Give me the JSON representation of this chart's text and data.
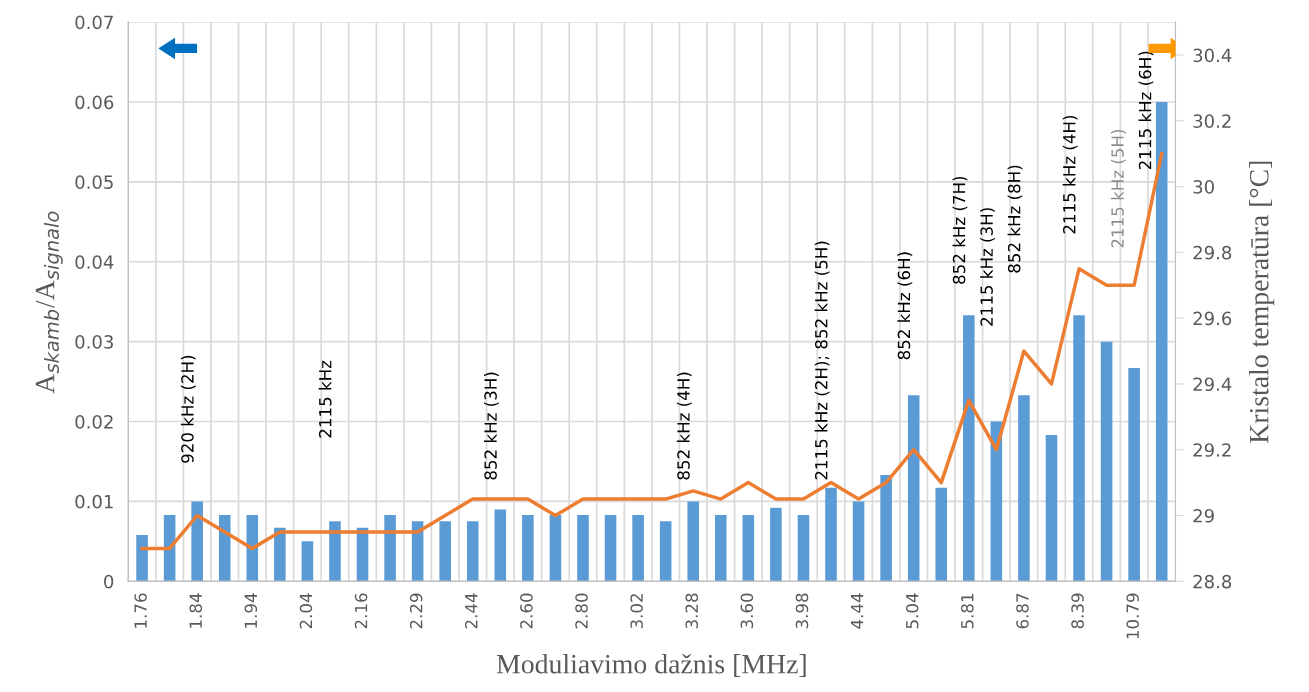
{
  "chart_data": {
    "type": "bar",
    "xlabel": "Moduliavimo dažnis [MHz]",
    "ylabel": "A$_{skamb}$/A$_{signalo}$",
    "y2label": "Kristalo temperatūra [°C]",
    "categories": [
      "1.76",
      null,
      "1.84",
      null,
      "1.94",
      null,
      "2.04",
      null,
      "2.16",
      null,
      "2.29",
      null,
      "2.44",
      null,
      "2.60",
      null,
      "2.80",
      null,
      "3.02",
      null,
      "3.28",
      null,
      "3.60",
      null,
      "3.98",
      null,
      "4.44",
      null,
      "5.04",
      null,
      "5.81",
      null,
      "6.87",
      null,
      "8.39",
      null,
      "10.79",
      null
    ],
    "series": [
      {
        "color": "#5b9bd5",
        "values": [
          0.0058,
          0.0083,
          0.01,
          0.0083,
          0.0083,
          0.0067,
          0.005,
          0.0075,
          0.0067,
          0.0083,
          0.0075,
          0.0075,
          0.0075,
          0.009,
          0.0083,
          0.0083,
          0.0083,
          0.0083,
          0.0083,
          0.0075,
          0.01,
          0.0083,
          0.0083,
          0.0092,
          0.0083,
          0.0117,
          0.01,
          0.0133,
          0.0233,
          0.0117,
          0.0333,
          0.02,
          0.0233,
          0.0183,
          0.0333,
          0.03,
          0.0267,
          0.06
        ]
      },
      {
        "type": "line",
        "axis": "y2",
        "color": "#ed7d31",
        "values": [
          28.9,
          28.9,
          29.0,
          28.95,
          28.9,
          28.95,
          28.95,
          28.95,
          28.95,
          28.95,
          28.95,
          29.0,
          29.05,
          29.05,
          29.05,
          29.0,
          29.05,
          29.05,
          29.05,
          29.05,
          29.075,
          29.05,
          29.1,
          29.05,
          29.05,
          29.1,
          29.05,
          29.1,
          29.2,
          29.1,
          29.35,
          29.2,
          29.5,
          29.4,
          29.75,
          29.7,
          29.7,
          30.1
        ]
      }
    ],
    "ylim": [
      0,
      0.07
    ],
    "yticks": [
      0,
      0.01,
      0.02,
      0.03,
      0.04,
      0.05,
      0.06,
      0.07
    ],
    "y2lim": [
      28.8,
      30.5
    ],
    "y2ticks": [
      28.8,
      29,
      29.2,
      29.4,
      29.6,
      29.8,
      30,
      30.2,
      30.4
    ],
    "grid": true,
    "legend": false,
    "annotations": [
      "920 kHz (2H)",
      "2115 kHz",
      "852 kHz (3H)",
      "852 kHz (4H)",
      "2115 kHz (2H); 852 kHz (5H)",
      "852 kHz (6H)",
      "852 kHz (7H)",
      "2115 kHz (3H)",
      "852 kHz (8H)",
      "2115 kHz (4H)",
      "2115 kHz (5H)",
      "2115 kHz (6H)"
    ]
  }
}
